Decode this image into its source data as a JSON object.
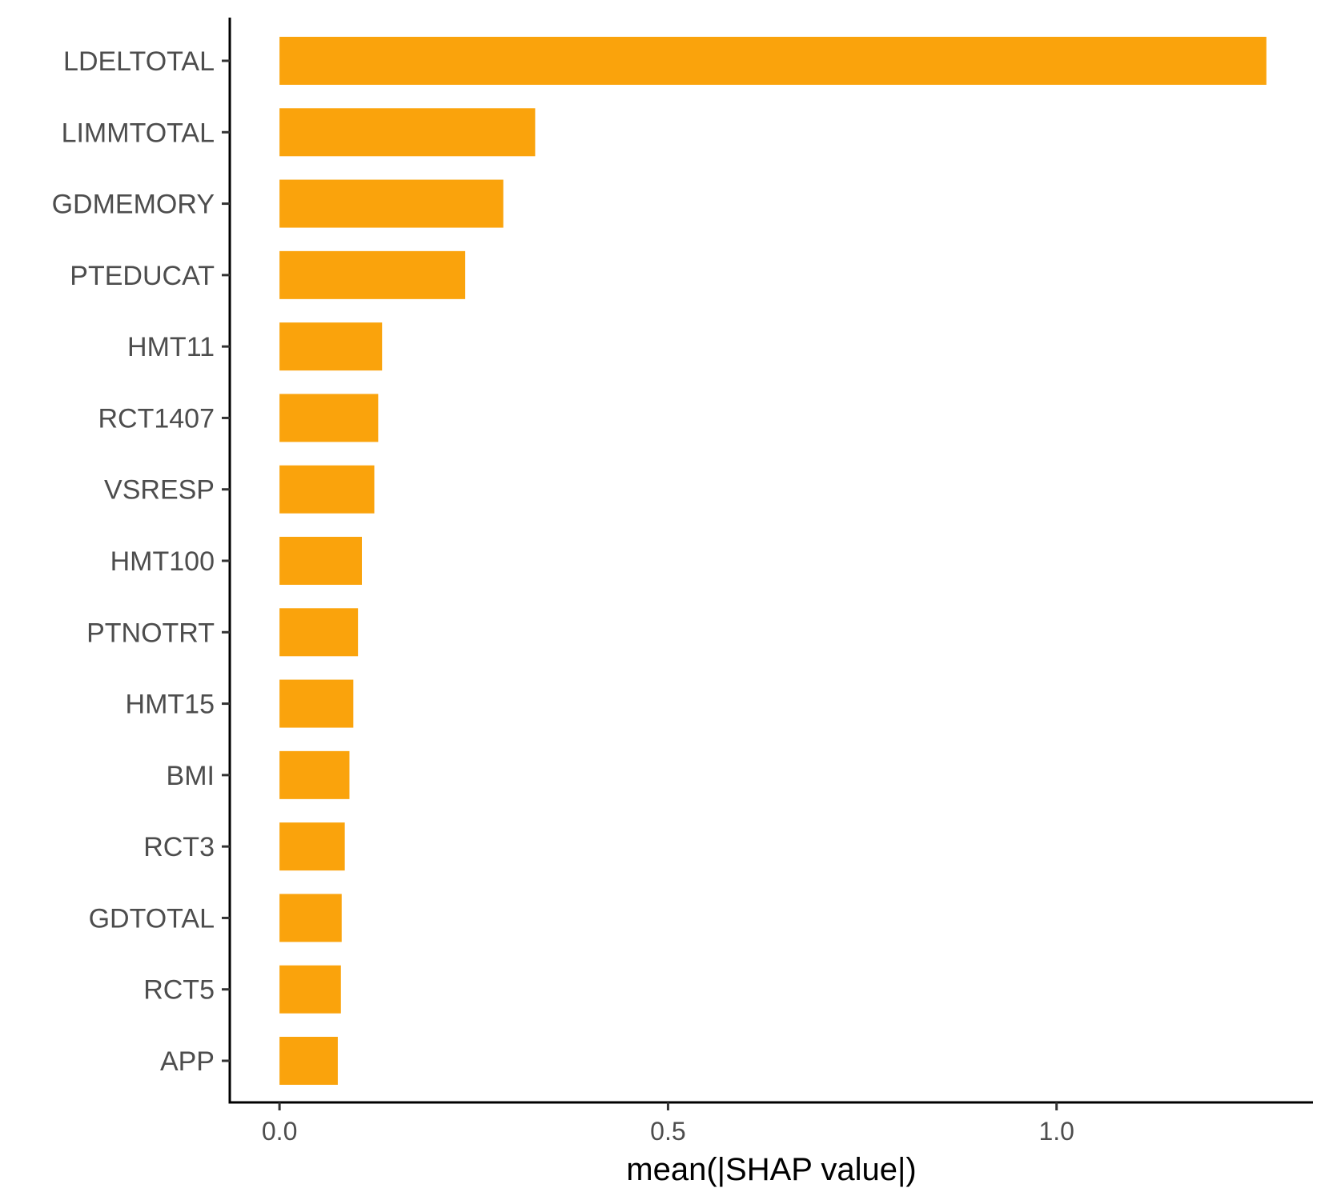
{
  "chart_data": {
    "type": "bar",
    "orientation": "horizontal",
    "categories": [
      "LDELTOTAL",
      "LIMMTOTAL",
      "GDMEMORY",
      "PTEDUCAT",
      "HMT11",
      "RCT1407",
      "VSRESP",
      "HMT100",
      "PTNOTRT",
      "HMT15",
      "BMI",
      "RCT3",
      "GDTOTAL",
      "RCT5",
      "APP"
    ],
    "values": [
      1.27,
      0.329,
      0.288,
      0.239,
      0.132,
      0.127,
      0.122,
      0.106,
      0.101,
      0.095,
      0.09,
      0.084,
      0.08,
      0.079,
      0.075
    ],
    "xlabel": "mean(|SHAP value|)",
    "ylabel": "",
    "title": "",
    "xlim": [
      -0.064,
      1.33
    ],
    "xticks": [
      0.0,
      0.5,
      1.0
    ],
    "xtick_labels": [
      "0.0",
      "0.5",
      "1.0"
    ],
    "bar_color": "#FAA30C",
    "grid": false,
    "legend": "none"
  }
}
